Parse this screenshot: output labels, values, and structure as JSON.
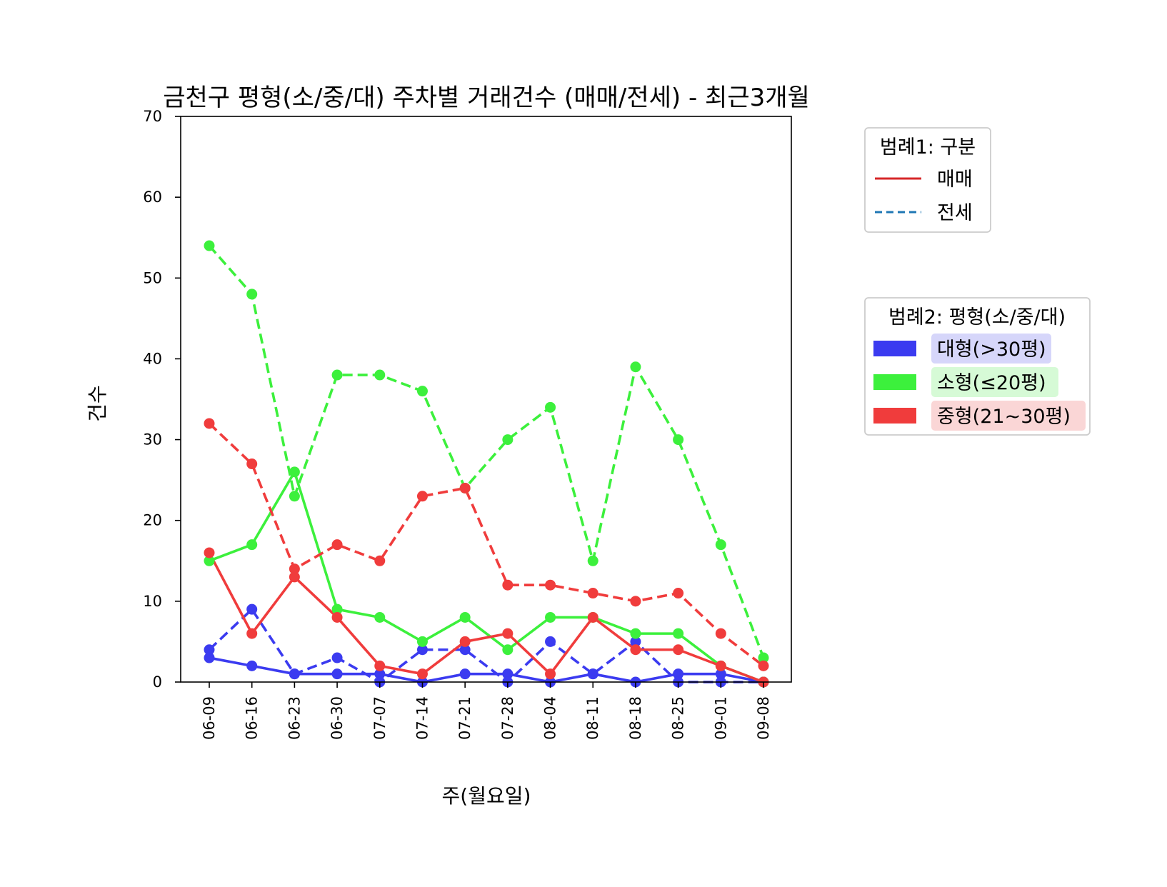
{
  "chart_data": {
    "type": "line",
    "title": "금천구 평형(소/중/대) 주차별 거래건수 (매매/전세) - 최근3개월",
    "xlabel": "주(월요일)",
    "ylabel": "건수",
    "ylim": [
      0,
      70
    ],
    "yticks": [
      0,
      10,
      20,
      30,
      40,
      50,
      60,
      70
    ],
    "categories": [
      "06-09",
      "06-16",
      "06-23",
      "06-30",
      "07-07",
      "07-14",
      "07-21",
      "07-28",
      "08-04",
      "08-11",
      "08-18",
      "08-25",
      "09-01",
      "09-08"
    ],
    "grid": false,
    "series": [
      {
        "name": "대형(>30평)",
        "type_key": "매매",
        "color": "#3b3bf0",
        "dash": "solid",
        "values": [
          3,
          2,
          1,
          1,
          1,
          0,
          1,
          1,
          0,
          1,
          0,
          1,
          1,
          0
        ]
      },
      {
        "name": "대형(>30평)",
        "type_key": "전세",
        "color": "#3b3bf0",
        "dash": "dashed",
        "values": [
          4,
          9,
          1,
          3,
          0,
          4,
          4,
          0,
          5,
          1,
          5,
          0,
          0,
          0
        ]
      },
      {
        "name": "소형(≤20평)",
        "type_key": "매매",
        "color": "#3cf03c",
        "dash": "solid",
        "values": [
          15,
          17,
          26,
          9,
          8,
          5,
          8,
          4,
          8,
          8,
          6,
          6,
          2,
          0
        ]
      },
      {
        "name": "소형(≤20평)",
        "type_key": "전세",
        "color": "#3cf03c",
        "dash": "dashed",
        "values": [
          54,
          48,
          23,
          38,
          38,
          36,
          24,
          30,
          34,
          15,
          39,
          30,
          17,
          3
        ]
      },
      {
        "name": "중형(21~30평)",
        "type_key": "매매",
        "color": "#f03c3c",
        "dash": "solid",
        "values": [
          16,
          6,
          13,
          8,
          2,
          1,
          5,
          6,
          1,
          8,
          4,
          4,
          2,
          0
        ]
      },
      {
        "name": "중형(21~30평)",
        "type_key": "전세",
        "color": "#f03c3c",
        "dash": "dashed",
        "values": [
          32,
          27,
          14,
          17,
          15,
          23,
          24,
          12,
          12,
          11,
          10,
          11,
          6,
          2
        ]
      }
    ],
    "legend1": {
      "title": "범례1: 구분",
      "placement": "top-right, outside",
      "items": [
        {
          "label": "매매",
          "color": "#d62728",
          "dash": "solid"
        },
        {
          "label": "전세",
          "color": "#1f77b4",
          "dash": "dashed"
        }
      ]
    },
    "legend2": {
      "title": "범례2: 평형(소/중/대)",
      "placement": "right, outside",
      "items": [
        {
          "label": "대형(>30평)",
          "color": "#3b3bf0",
          "bg": "#d6d6fa"
        },
        {
          "label": "소형(≤20평)",
          "color": "#3cf03c",
          "bg": "#d6fad6"
        },
        {
          "label": "중형(21~30평)",
          "color": "#f03c3c",
          "bg": "#fad6d6"
        }
      ]
    }
  }
}
